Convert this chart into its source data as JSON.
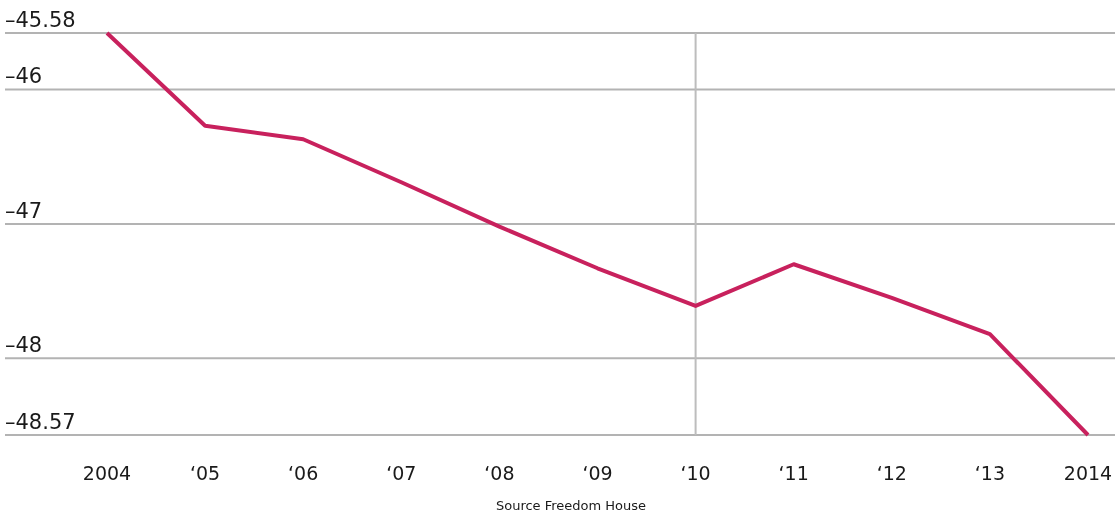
{
  "chart_data": {
    "type": "line",
    "categories": [
      "2004",
      "‘05",
      "‘06",
      "‘07",
      "‘08",
      "‘09",
      "‘10",
      "‘11",
      "‘12",
      "‘13",
      "2014"
    ],
    "series": [
      {
        "color": "#c8215d",
        "values": [
          -45.58,
          -46.27,
          -46.37,
          -46.69,
          -47.02,
          -47.33,
          -47.61,
          -47.3,
          -47.55,
          -47.82,
          -48.57
        ]
      }
    ],
    "ylim": [
      -48.57,
      -45.58
    ],
    "yticks": [
      {
        "value": -45.58,
        "label": "–45.58"
      },
      {
        "value": -46,
        "label": "–46"
      },
      {
        "value": -47,
        "label": "–47"
      },
      {
        "value": -48,
        "label": "–48"
      },
      {
        "value": -48.57,
        "label": "–48.57"
      }
    ],
    "grid": "y",
    "ref_lines": [
      {
        "axis": "x",
        "value": "‘10",
        "color": "#bdbdbd"
      }
    ],
    "marker": "none",
    "line_style": "solid",
    "annotations": [
      "Source Freedom House"
    ]
  }
}
